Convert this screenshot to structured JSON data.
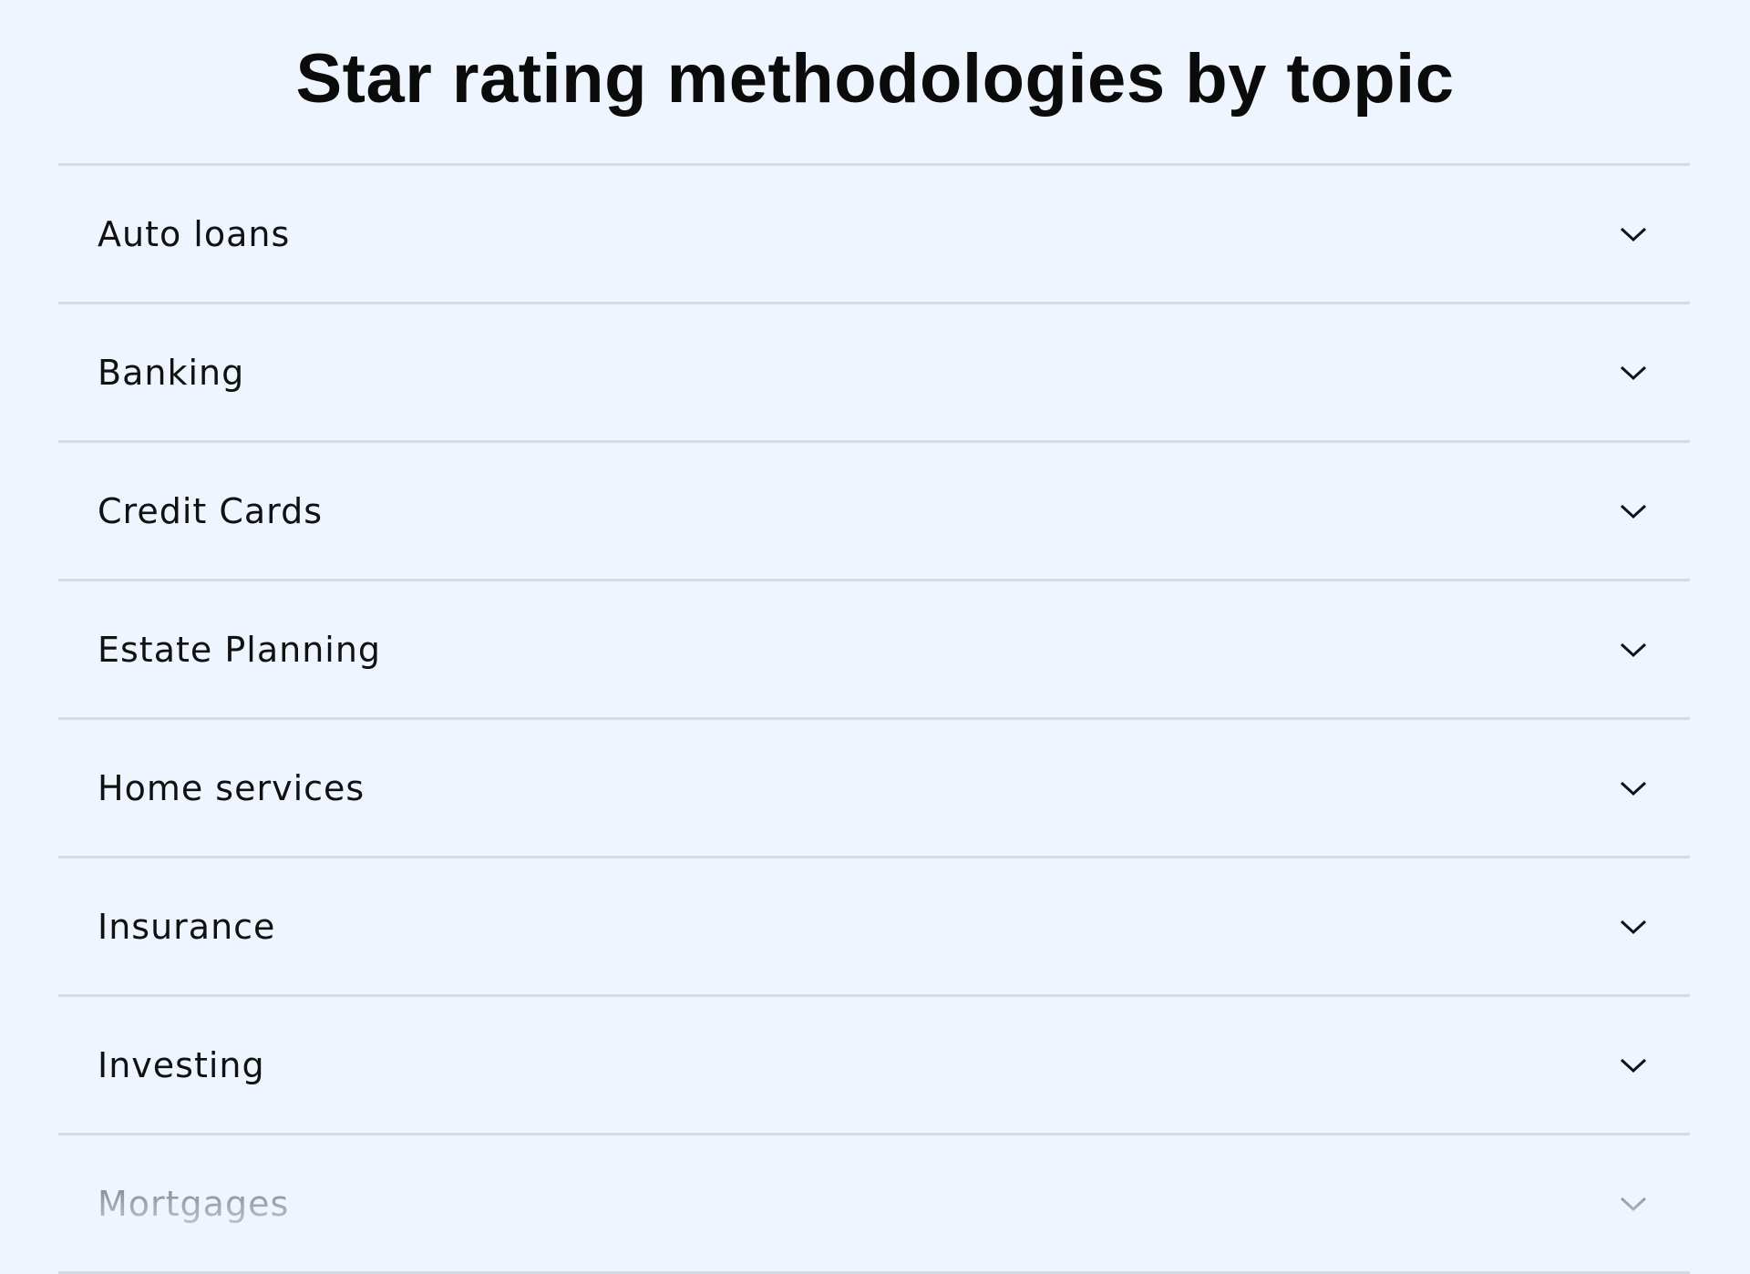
{
  "header": {
    "title": "Star rating methodologies by topic"
  },
  "items": [
    "Auto loans",
    "Banking",
    "Credit Cards",
    "Estate Planning",
    "Home services",
    "Insurance",
    "Investing",
    "Mortgages"
  ]
}
